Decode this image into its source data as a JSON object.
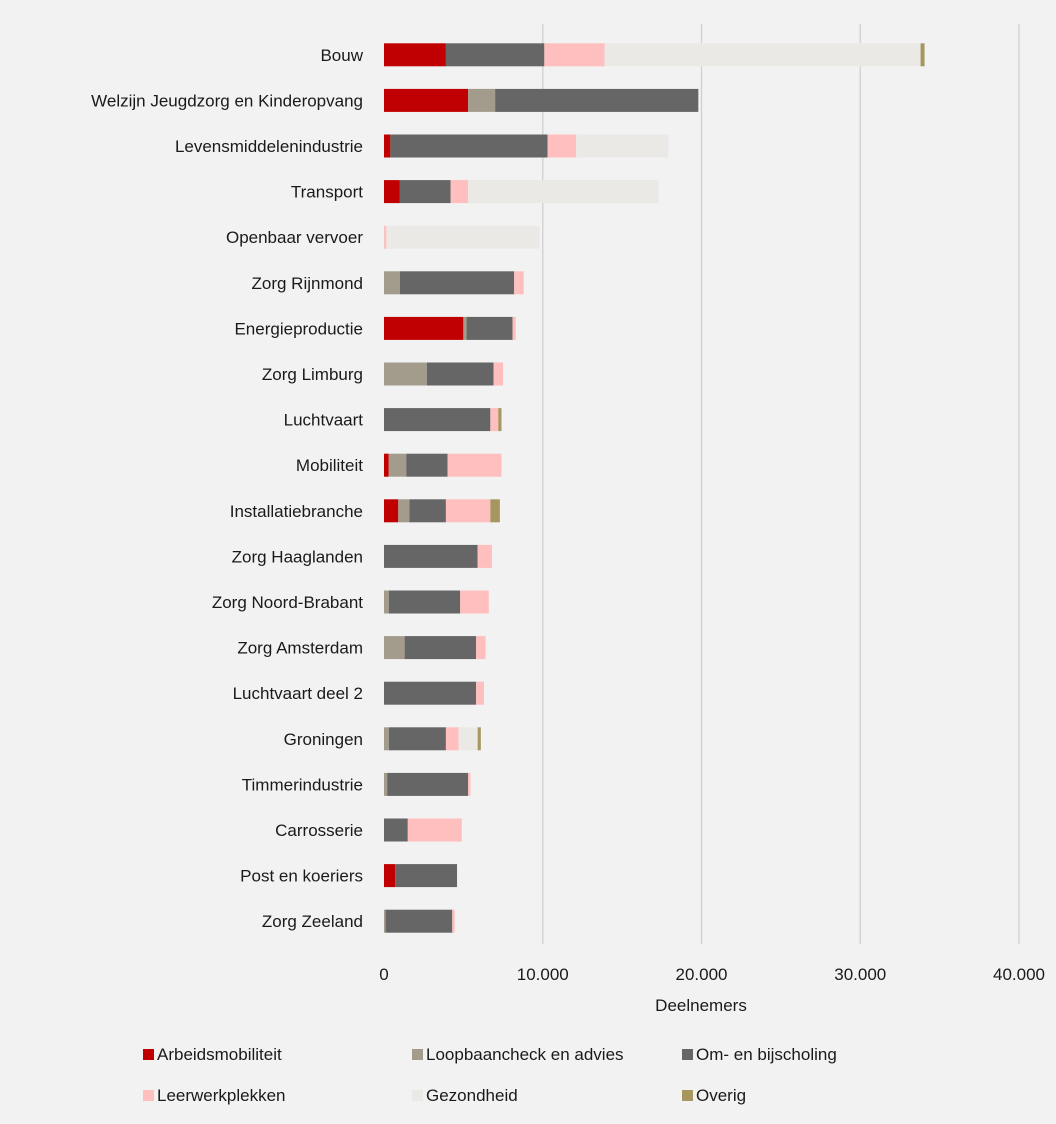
{
  "chart_data": {
    "type": "bar",
    "orientation": "horizontal",
    "stacked": true,
    "xlabel": "Deelnemers",
    "xlim": [
      0,
      40000
    ],
    "x_ticks": [
      0,
      10000,
      20000,
      30000,
      40000
    ],
    "x_tick_labels": [
      "0",
      "10.000",
      "20.000",
      "30.000",
      "40.000"
    ],
    "grid": "vertical",
    "legend_position": "bottom",
    "categories": [
      "Bouw",
      "Welzijn Jeugdzorg en Kinderopvang",
      "Levensmiddelenindustrie",
      "Transport",
      "Openbaar vervoer",
      "Zorg Rijnmond",
      "Energieproductie",
      "Zorg Limburg",
      "Luchtvaart",
      "Mobiliteit",
      "Installatiebranche",
      "Zorg Haaglanden",
      "Zorg Noord-Brabant",
      "Zorg Amsterdam",
      "Luchtvaart deel 2",
      "Groningen",
      "Timmerindustrie",
      "Carrosserie",
      "Post en koeriers",
      "Zorg Zeeland"
    ],
    "series": [
      {
        "name": "Arbeidsmobiliteit",
        "color": "#c00000",
        "values": [
          3900,
          5300,
          400,
          1000,
          0,
          0,
          5000,
          0,
          0,
          300,
          900,
          0,
          0,
          0,
          0,
          0,
          0,
          0,
          700,
          0
        ]
      },
      {
        "name": "Loopbaancheck en advies",
        "color": "#a39c8d",
        "values": [
          0,
          1700,
          0,
          0,
          0,
          1000,
          200,
          2700,
          0,
          1100,
          700,
          0,
          300,
          1300,
          0,
          300,
          200,
          0,
          0,
          100
        ]
      },
      {
        "name": "Om- en bijscholing",
        "color": "#666666",
        "values": [
          6200,
          12800,
          9900,
          3200,
          0,
          7200,
          2900,
          4200,
          6700,
          2600,
          2300,
          5900,
          4500,
          4500,
          5800,
          3600,
          5100,
          1500,
          3900,
          4200
        ]
      },
      {
        "name": "Leerwerkplekken",
        "color": "#ffbfbf",
        "values": [
          3800,
          0,
          1800,
          1100,
          150,
          600,
          200,
          600,
          500,
          3400,
          2800,
          900,
          1800,
          600,
          500,
          800,
          150,
          3400,
          0,
          150
        ]
      },
      {
        "name": "Gezondheid",
        "color": "#ebe9e5",
        "values": [
          19900,
          0,
          5800,
          12000,
          9650,
          0,
          0,
          0,
          0,
          0,
          0,
          0,
          0,
          0,
          0,
          1200,
          0,
          0,
          0,
          0
        ]
      },
      {
        "name": "Overig",
        "color": "#a69760",
        "values": [
          250,
          0,
          0,
          0,
          0,
          0,
          0,
          0,
          200,
          0,
          600,
          0,
          0,
          0,
          0,
          200,
          0,
          0,
          0,
          0
        ]
      }
    ]
  }
}
